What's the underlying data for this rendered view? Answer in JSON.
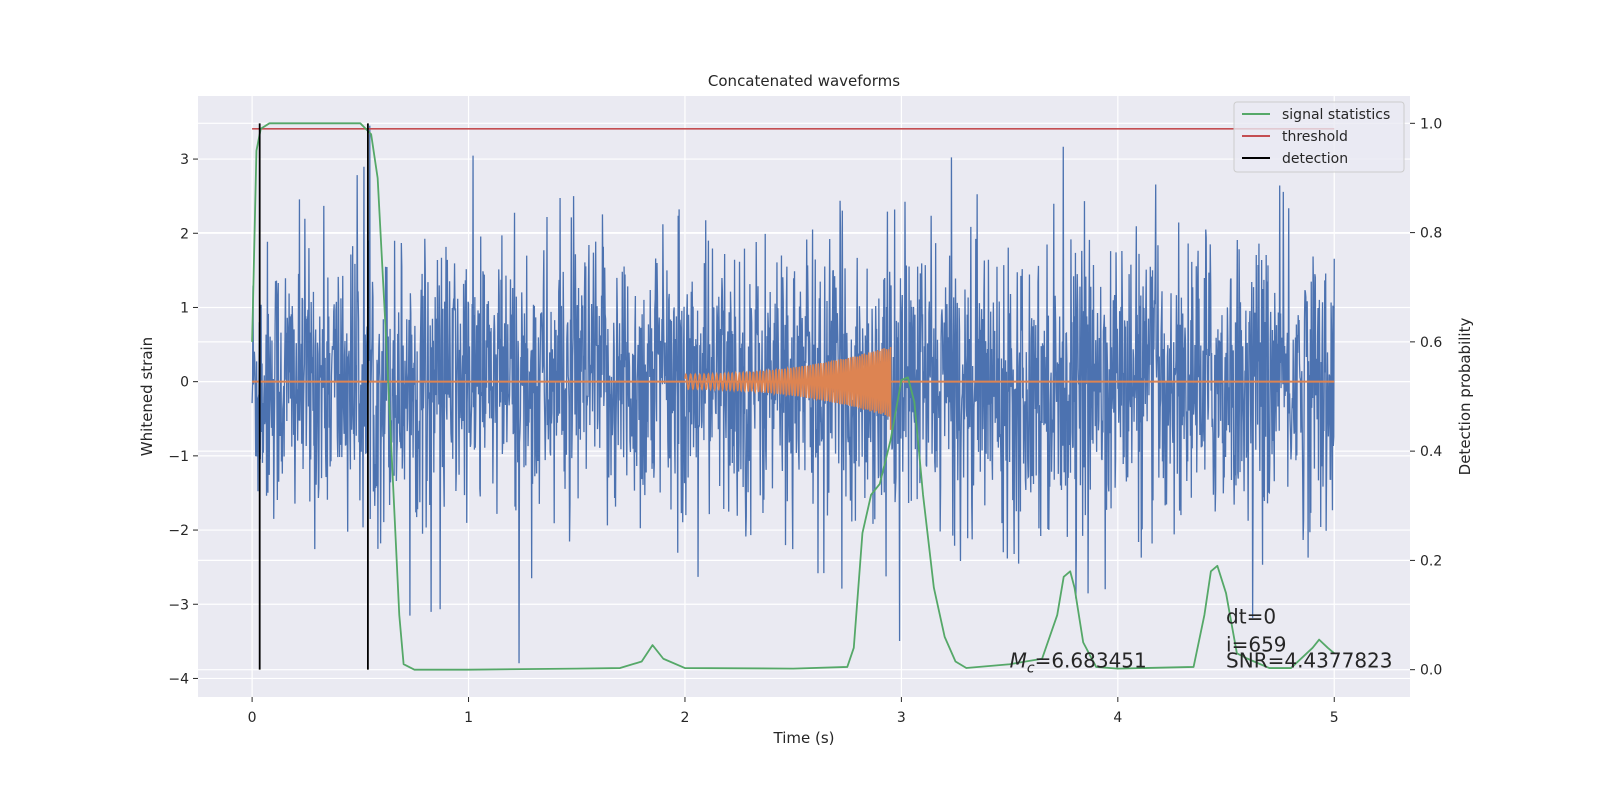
{
  "chart_data": {
    "type": "line",
    "title": "Concatenated waveforms",
    "xlabel": "Time (s)",
    "ylabel_left": "Whitened strain",
    "ylabel_right": "Detection probability",
    "xlim": [
      -0.25,
      5.35
    ],
    "ylim_left": [
      -4.25,
      3.85
    ],
    "ylim_right": [
      -0.05,
      1.05
    ],
    "x_ticks": [
      0,
      1,
      2,
      3,
      4,
      5
    ],
    "x_tick_labels": [
      "0",
      "1",
      "2",
      "3",
      "4",
      "5"
    ],
    "y_left_ticks": [
      -4,
      -3,
      -2,
      -1,
      0,
      1,
      2,
      3
    ],
    "y_left_tick_labels": [
      "−4",
      "−3",
      "−2",
      "−1",
      "0",
      "1",
      "2",
      "3"
    ],
    "y_right_ticks": [
      0.0,
      0.2,
      0.4,
      0.6,
      0.8,
      1.0
    ],
    "y_right_tick_labels": [
      "0.0",
      "0.2",
      "0.4",
      "0.6",
      "0.8",
      "1.0"
    ],
    "grid": true,
    "legend_position": "top-right",
    "series": [
      {
        "name": "signal statistics",
        "axis": "right",
        "color": "#55a868",
        "x": [
          0.0,
          0.02,
          0.04,
          0.08,
          0.3,
          0.5,
          0.55,
          0.58,
          0.62,
          0.65,
          0.68,
          0.7,
          0.75,
          1.0,
          1.5,
          1.7,
          1.8,
          1.85,
          1.9,
          2.0,
          2.5,
          2.75,
          2.78,
          2.82,
          2.86,
          2.9,
          2.95,
          3.0,
          3.03,
          3.06,
          3.1,
          3.15,
          3.2,
          3.25,
          3.3,
          3.5,
          3.65,
          3.72,
          3.75,
          3.78,
          3.8,
          3.84,
          3.9,
          4.0,
          4.35,
          4.4,
          4.43,
          4.46,
          4.5,
          4.55,
          4.6,
          4.7,
          4.8,
          4.9,
          4.93,
          4.97,
          5.0
        ],
        "y": [
          0.6,
          0.95,
          0.99,
          1.0,
          1.0,
          1.0,
          0.98,
          0.9,
          0.6,
          0.35,
          0.1,
          0.01,
          0.0,
          0.0,
          0.002,
          0.003,
          0.015,
          0.045,
          0.02,
          0.003,
          0.002,
          0.005,
          0.04,
          0.25,
          0.32,
          0.34,
          0.42,
          0.53,
          0.535,
          0.49,
          0.32,
          0.15,
          0.06,
          0.015,
          0.003,
          0.01,
          0.02,
          0.1,
          0.17,
          0.18,
          0.15,
          0.05,
          0.005,
          0.002,
          0.005,
          0.1,
          0.18,
          0.19,
          0.14,
          0.03,
          0.02,
          0.003,
          0.003,
          0.04,
          0.055,
          0.04,
          0.03
        ]
      },
      {
        "name": "threshold",
        "axis": "right",
        "color": "#c44e52",
        "x": [
          0.0,
          5.0
        ],
        "y": [
          0.99,
          0.99
        ]
      },
      {
        "name": "detection",
        "axis": "right",
        "color": "#000000",
        "x": [
          0.035,
          0.535
        ]
      }
    ],
    "waveforms": [
      {
        "role": "whitened_strain",
        "axis": "left",
        "color": "#4c72b0",
        "x_range": [
          0.0,
          5.0
        ],
        "typical_amplitude": 1.5,
        "min": -3.95,
        "max": 3.45
      },
      {
        "role": "injected_signal",
        "axis": "left",
        "color": "#dd8452",
        "x_range": [
          2.0,
          2.95
        ],
        "amplitude_start": 0.1,
        "amplitude_end": 0.48
      }
    ],
    "annotations": [
      {
        "text_mc": "M",
        "text_sub": "c",
        "text_val": "=6.683451",
        "x": 3.5,
        "y": -3.85
      },
      {
        "lines": [
          "dt=0",
          "i=659",
          "SNR=4.4377823"
        ],
        "x": 4.5,
        "y": -3.85
      }
    ]
  }
}
